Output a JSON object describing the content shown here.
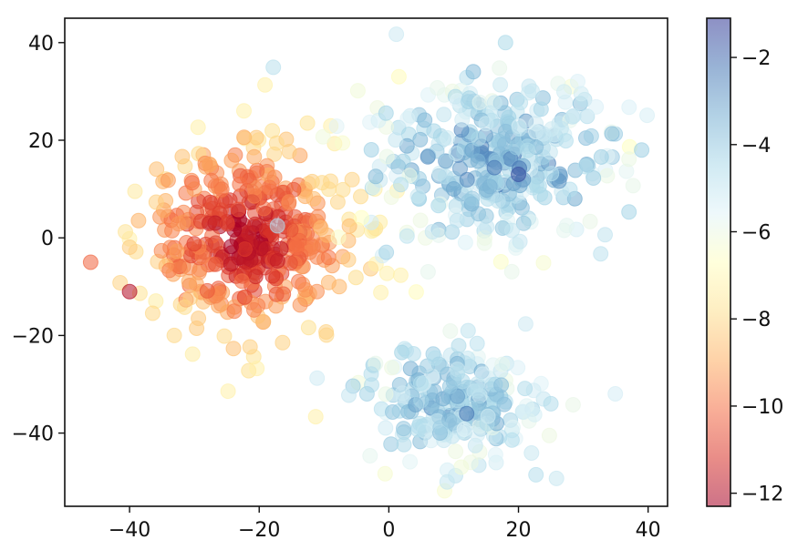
{
  "chart_data": {
    "type": "scatter",
    "title": "",
    "xlabel": "",
    "ylabel": "",
    "xlim": [
      -50,
      43
    ],
    "ylim": [
      -55,
      45
    ],
    "x_ticks": [
      -40,
      -20,
      0,
      20,
      40
    ],
    "y_ticks": [
      40,
      20,
      0,
      -20,
      -40
    ],
    "grid": false,
    "colorbar": {
      "colormap": "RdYlBu",
      "range": [
        -12.3,
        -1.1
      ],
      "ticks": [
        -2,
        -4,
        -6,
        -8,
        -10,
        -12
      ],
      "stops": [
        "#a50026",
        "#d73027",
        "#f46d43",
        "#fdae61",
        "#fee090",
        "#ffffbf",
        "#e0f3f8",
        "#abd9e9",
        "#74add1",
        "#4575b4",
        "#313695"
      ],
      "alpha": 0.55
    },
    "marker_alpha": 0.55,
    "clusters": [
      {
        "center": [
          -22,
          0
        ],
        "spread": [
          8,
          10
        ],
        "count": 420,
        "value_range": [
          -12.3,
          -7.2
        ]
      },
      {
        "center": [
          16,
          16
        ],
        "spread": [
          10,
          9
        ],
        "count": 360,
        "value_range": [
          -7.0,
          -2.0
        ]
      },
      {
        "center": [
          10,
          -34
        ],
        "spread": [
          7,
          6
        ],
        "count": 230,
        "value_range": [
          -6.8,
          -2.5
        ]
      }
    ],
    "points_highlighted": [
      {
        "x": -46,
        "y": -5,
        "v": -10.2
      },
      {
        "x": -40,
        "y": -11,
        "v": -12.0
      },
      {
        "x": 18,
        "y": 40,
        "v": -4.5
      },
      {
        "x": 39,
        "y": 18,
        "v": -4.2
      },
      {
        "x": 12,
        "y": -36,
        "v": -2.3
      },
      {
        "x": 20,
        "y": 13,
        "v": -1.6
      },
      {
        "x": 9,
        "y": -50,
        "v": -5.0
      },
      {
        "x": 25,
        "y": -34,
        "v": -4.6
      }
    ],
    "tick_label_format": "unicode-minus"
  }
}
